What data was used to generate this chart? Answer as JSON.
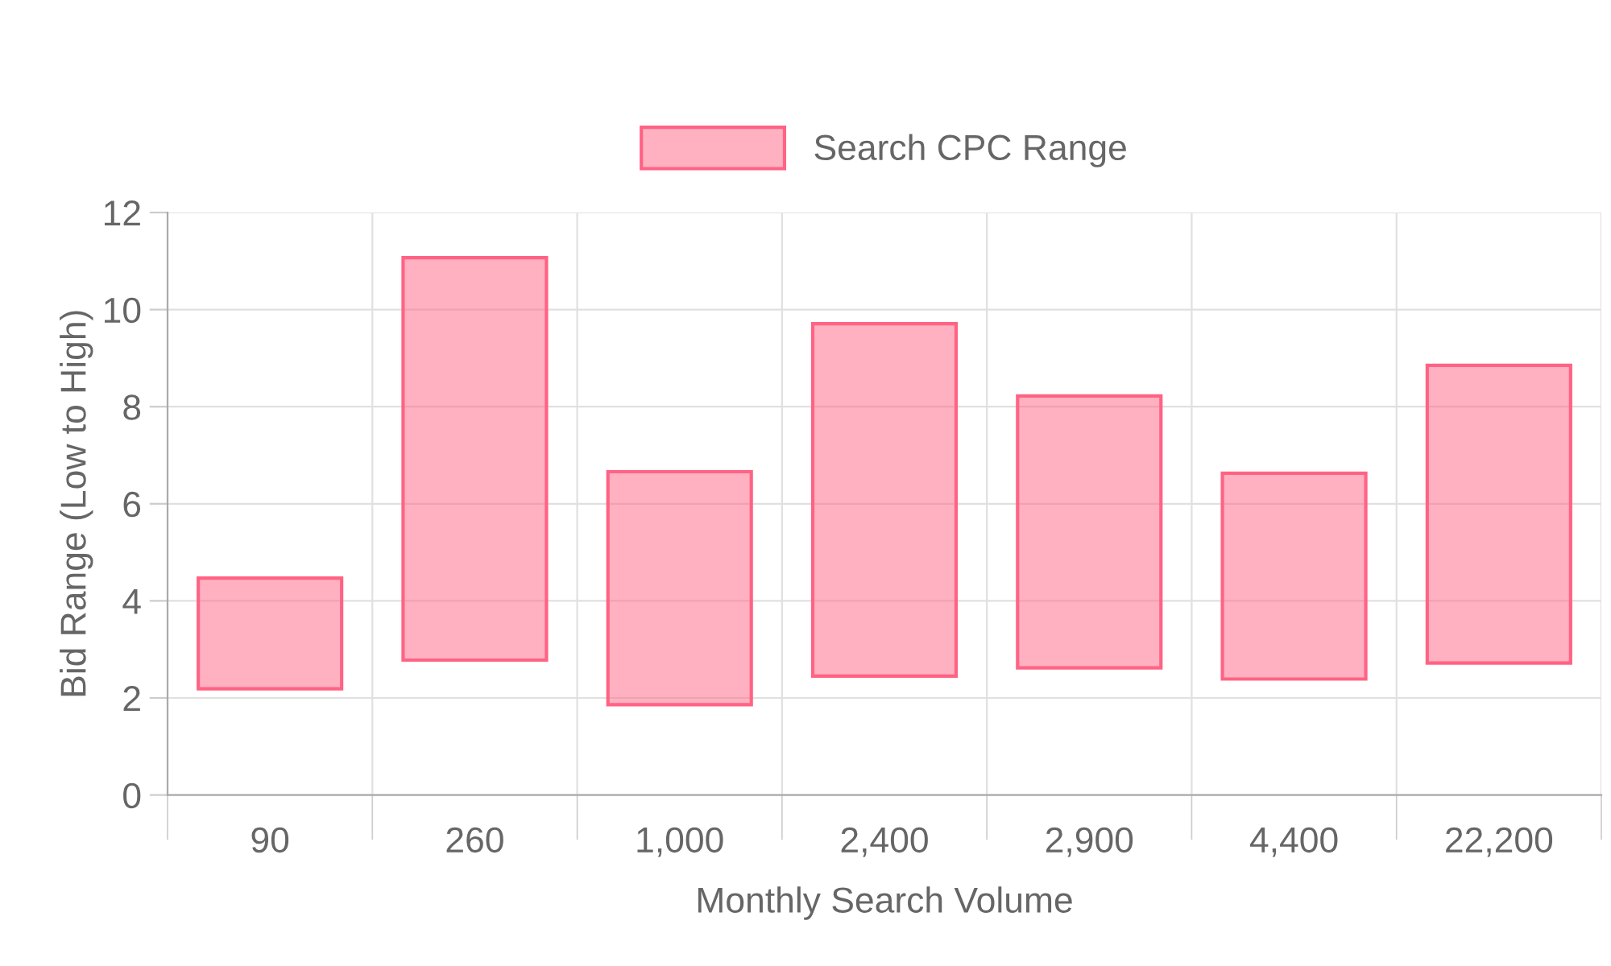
{
  "chart_data": {
    "type": "bar",
    "xlabel": "Monthly Search Volume",
    "ylabel": "Bid Range (Low to High)",
    "categories": [
      "90",
      "260",
      "1,000",
      "2,400",
      "2,900",
      "4,400",
      "22,200"
    ],
    "series": [
      {
        "name": "Search CPC Range",
        "color": "#ff6384",
        "base": [
          2.19,
          2.78,
          1.86,
          2.45,
          2.62,
          2.39,
          2.72
        ],
        "values": [
          2.28,
          8.29,
          4.8,
          7.26,
          5.6,
          4.24,
          6.13
        ]
      }
    ],
    "ylim": [
      0,
      12
    ],
    "yticks": [
      0,
      2,
      4,
      6,
      8,
      10,
      12
    ],
    "grid": true,
    "legend": "top"
  }
}
